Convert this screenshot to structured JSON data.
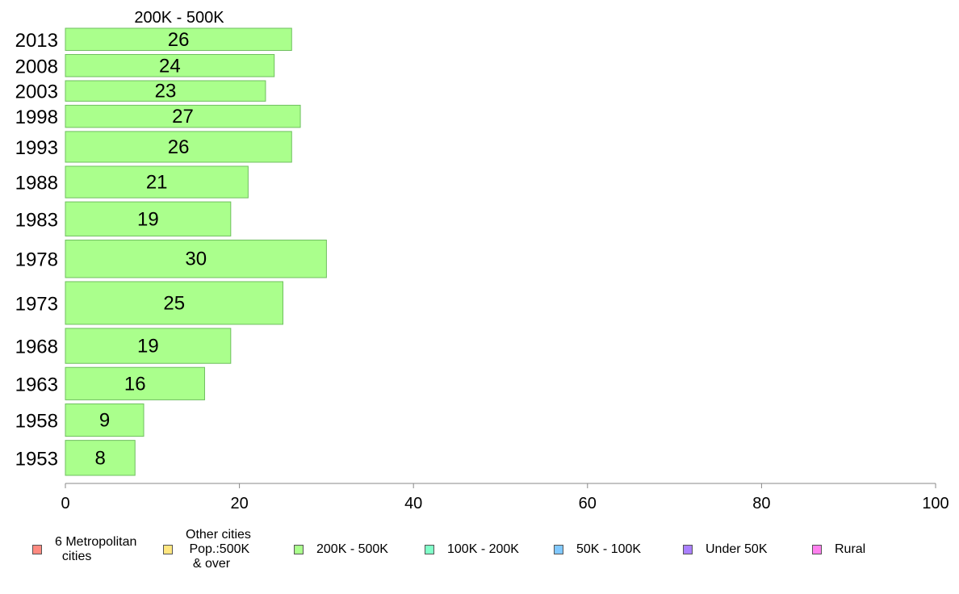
{
  "chart_data": {
    "type": "bar",
    "orientation": "horizontal",
    "title": "200K - 500K",
    "categories": [
      "2013",
      "2008",
      "2003",
      "1998",
      "1993",
      "1988",
      "1983",
      "1978",
      "1973",
      "1968",
      "1963",
      "1958",
      "1953"
    ],
    "values": [
      26,
      24,
      23,
      27,
      26,
      21,
      19,
      30,
      25,
      19,
      16,
      9,
      8
    ],
    "data_labels": [
      "26",
      "24",
      "23",
      "27",
      "26",
      "21",
      "19",
      "30",
      "25",
      "19",
      "16",
      "9",
      "8"
    ],
    "relative_bar_heights": [
      26,
      26,
      24,
      26,
      36,
      37,
      40,
      44,
      50,
      41,
      38,
      38,
      41
    ],
    "xlim": [
      0,
      100
    ],
    "xticks": [
      "0",
      "20",
      "40",
      "60",
      "80",
      "100"
    ],
    "xlabel": "",
    "ylabel": "",
    "grid": false,
    "bar_color": "#aaff8c",
    "bar_edge_color": "#6fbf5f",
    "legend_position": "bottom",
    "legend": [
      {
        "label": "6 Metropolitan\n  cities",
        "color": "#ff8a80"
      },
      {
        "label": "Other cities\n Pop.:500K\n  & over",
        "color": "#ffe680"
      },
      {
        "label": "200K - 500K",
        "color": "#aaff8c"
      },
      {
        "label": "100K - 200K",
        "color": "#80ffc8"
      },
      {
        "label": "50K - 100K",
        "color": "#80c8ff"
      },
      {
        "label": "Under 50K",
        "color": "#aa80ff"
      },
      {
        "label": "Rural",
        "color": "#ff80ee"
      }
    ]
  }
}
